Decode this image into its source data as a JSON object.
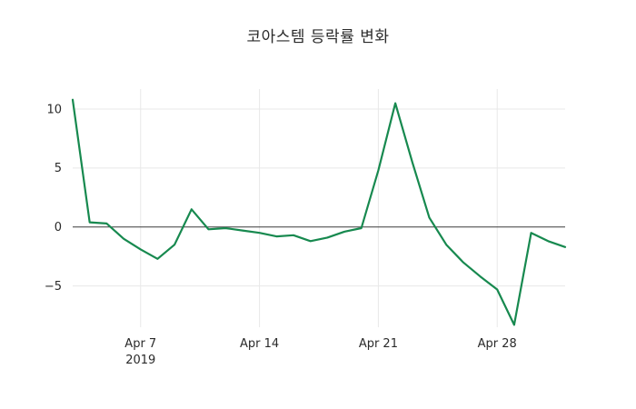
{
  "title": "코아스템 등락률 변화",
  "chart_data": {
    "type": "line",
    "title": "코아스템 등락률 변화",
    "x": [
      "2019-04-03",
      "2019-04-04",
      "2019-04-05",
      "2019-04-06",
      "2019-04-07",
      "2019-04-08",
      "2019-04-09",
      "2019-04-10",
      "2019-04-11",
      "2019-04-12",
      "2019-04-13",
      "2019-04-14",
      "2019-04-15",
      "2019-04-16",
      "2019-04-17",
      "2019-04-18",
      "2019-04-19",
      "2019-04-20",
      "2019-04-21",
      "2019-04-22",
      "2019-04-23",
      "2019-04-24",
      "2019-04-25",
      "2019-04-26",
      "2019-04-27",
      "2019-04-28",
      "2019-04-29",
      "2019-04-30",
      "2019-05-01",
      "2019-05-02"
    ],
    "values": [
      10.8,
      0.4,
      0.3,
      -1.0,
      -1.9,
      -2.7,
      -1.5,
      1.5,
      -0.2,
      -0.1,
      -0.3,
      -0.5,
      -0.8,
      -0.7,
      -1.2,
      -0.9,
      -0.4,
      -0.1,
      4.8,
      10.5,
      5.5,
      0.8,
      -1.5,
      -3.0,
      -4.2,
      -5.3,
      -8.3,
      -0.5,
      -1.2,
      -1.7
    ],
    "xticks": [
      {
        "date": "2019-04-07",
        "label": "Apr 7",
        "sublabel": "2019"
      },
      {
        "date": "2019-04-14",
        "label": "Apr 14",
        "sublabel": ""
      },
      {
        "date": "2019-04-21",
        "label": "Apr 21",
        "sublabel": ""
      },
      {
        "date": "2019-04-28",
        "label": "Apr 28",
        "sublabel": ""
      }
    ],
    "yticks": [
      {
        "value": 10,
        "label": "10"
      },
      {
        "value": 5,
        "label": "5"
      },
      {
        "value": 0,
        "label": "0"
      },
      {
        "value": -5,
        "label": "−5"
      }
    ],
    "ylim": [
      -8.5,
      11.7
    ],
    "line_color": "#17894f",
    "grid_color": "#e8e8e8",
    "zero_line_color": "#3a3a3a",
    "background": "#ffffff",
    "legend": "none",
    "xlabel": "",
    "ylabel": ""
  }
}
